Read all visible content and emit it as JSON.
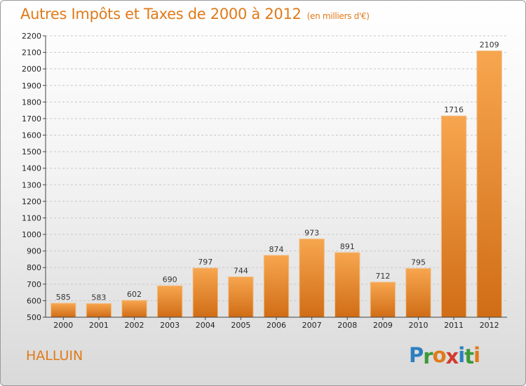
{
  "title": "Autres Impôts et Taxes de 2000 à 2012",
  "unit_label": "(en milliers d'€)",
  "city": "HALLUIN",
  "logo": {
    "letters": [
      "P",
      "r",
      "o",
      "x",
      "i",
      "t",
      "i"
    ],
    "colors": [
      "#2d7fc0",
      "#3a9a3a",
      "#e07a1a",
      "#d23b2f",
      "#2d7fc0",
      "#3a9a3a",
      "#e07a1a"
    ]
  },
  "colors": {
    "bar_top": "#f7a64f",
    "bar_bottom": "#d06d16",
    "accent": "#e07a1a"
  },
  "chart_data": {
    "type": "bar",
    "categories": [
      "2000",
      "2001",
      "2002",
      "2003",
      "2004",
      "2005",
      "2006",
      "2007",
      "2008",
      "2009",
      "2010",
      "2011",
      "2012"
    ],
    "values": [
      585,
      583,
      602,
      690,
      797,
      744,
      874,
      973,
      891,
      712,
      795,
      1716,
      2109
    ],
    "title": "Autres Impôts et Taxes de 2000 à 2012",
    "ylim": [
      500,
      2200
    ],
    "yticks": [
      500,
      600,
      700,
      800,
      900,
      1000,
      1100,
      1200,
      1300,
      1400,
      1500,
      1600,
      1700,
      1800,
      1900,
      2000,
      2100,
      2200
    ],
    "grid": true
  }
}
